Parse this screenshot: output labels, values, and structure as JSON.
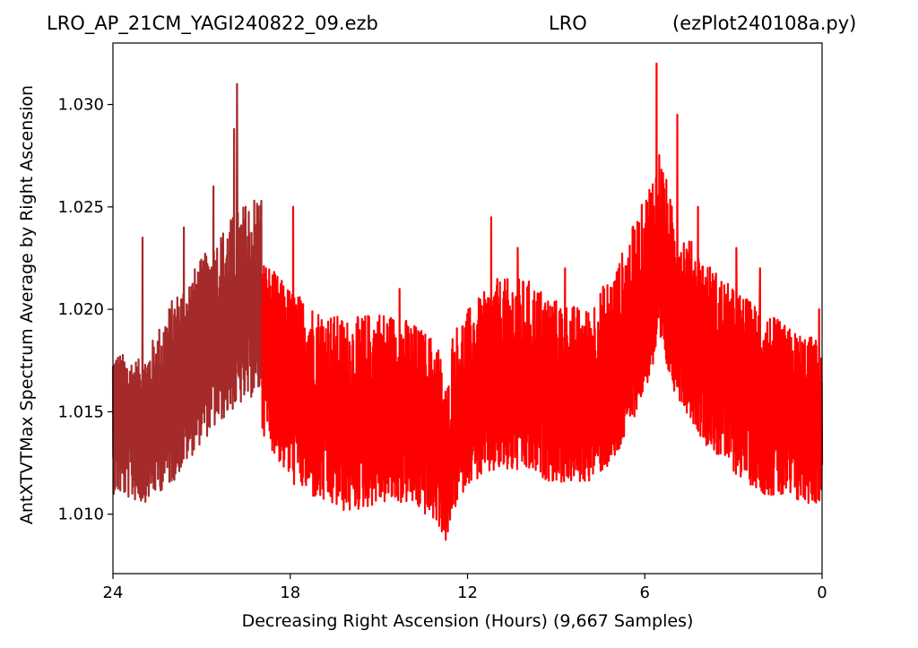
{
  "header": {
    "file": "LRO_AP_21CM_YAGI240822_09.ezb",
    "site": "LRO",
    "script": "(ezPlot240108a.py)"
  },
  "chart_data": {
    "type": "line",
    "xlabel": "Decreasing Right Ascension (Hours) (9,667 Samples)",
    "ylabel": "AntXTVTMax Spectrum Average by Right Ascension",
    "xlim": [
      24,
      0
    ],
    "ylim": [
      1.0071,
      1.033
    ],
    "xticks": [
      24,
      18,
      12,
      6,
      0
    ],
    "xtick_labels": [
      "24",
      "18",
      "12",
      "6",
      "0"
    ],
    "yticks": [
      1.01,
      1.015,
      1.02,
      1.025,
      1.03
    ],
    "ytick_labels": [
      "1.010",
      "1.015",
      "1.020",
      "1.025",
      "1.030"
    ],
    "grid": false,
    "series": [
      {
        "color": "#a52a2a",
        "x": [
          24.0,
          23.0,
          22.0,
          21.0,
          20.0,
          19.0,
          18.95
        ],
        "y_center": [
          1.0145,
          1.014,
          1.0155,
          1.0175,
          1.019,
          1.019,
          1.0185
        ],
        "y_low": [
          1.011,
          1.0105,
          1.0115,
          1.0135,
          1.015,
          1.016,
          1.016
        ],
        "y_high": [
          1.018,
          1.0175,
          1.0205,
          1.0225,
          1.0245,
          1.026,
          1.0255
        ],
        "spikes": [
          [
            23.0,
            1.0235
          ],
          [
            21.6,
            1.024
          ],
          [
            20.6,
            1.026
          ],
          [
            19.8,
            1.031
          ],
          [
            19.9,
            1.0288
          ],
          [
            18.2,
            1.0255
          ],
          [
            18.0,
            1.0245
          ]
        ]
      },
      {
        "color": "#ff0000",
        "x": [
          18.95,
          18.0,
          17.0,
          16.0,
          15.0,
          14.0,
          13.0,
          12.7,
          12.5,
          12.0,
          11.0,
          10.0,
          9.0,
          8.0,
          7.0,
          6.0,
          5.5,
          5.0,
          4.0,
          3.0,
          2.0,
          1.0,
          0.0
        ],
        "y_center": [
          1.018,
          1.0165,
          1.015,
          1.0145,
          1.0145,
          1.0145,
          1.013,
          1.011,
          1.0135,
          1.015,
          1.016,
          1.016,
          1.0155,
          1.015,
          1.016,
          1.019,
          1.021,
          1.0195,
          1.0175,
          1.0165,
          1.0155,
          1.0145,
          1.014
        ],
        "y_low": [
          1.014,
          1.0115,
          1.0105,
          1.01,
          1.0105,
          1.0105,
          1.0095,
          1.0085,
          1.01,
          1.0115,
          1.012,
          1.012,
          1.0115,
          1.0115,
          1.0125,
          1.016,
          1.018,
          1.016,
          1.0135,
          1.012,
          1.011,
          1.0105,
          1.0105
        ],
        "y_high": [
          1.0225,
          1.021,
          1.02,
          1.0195,
          1.02,
          1.0195,
          1.0185,
          1.016,
          1.019,
          1.02,
          1.0215,
          1.0215,
          1.0205,
          1.02,
          1.022,
          1.0255,
          1.028,
          1.0245,
          1.0225,
          1.021,
          1.02,
          1.019,
          1.0185
        ],
        "spikes": [
          [
            17.9,
            1.025
          ],
          [
            14.3,
            1.021
          ],
          [
            11.2,
            1.0245
          ],
          [
            10.3,
            1.023
          ],
          [
            8.7,
            1.022
          ],
          [
            5.6,
            1.032
          ],
          [
            4.9,
            1.0295
          ],
          [
            4.2,
            1.025
          ],
          [
            2.9,
            1.023
          ],
          [
            2.1,
            1.022
          ],
          [
            0.1,
            1.02
          ]
        ]
      }
    ]
  }
}
